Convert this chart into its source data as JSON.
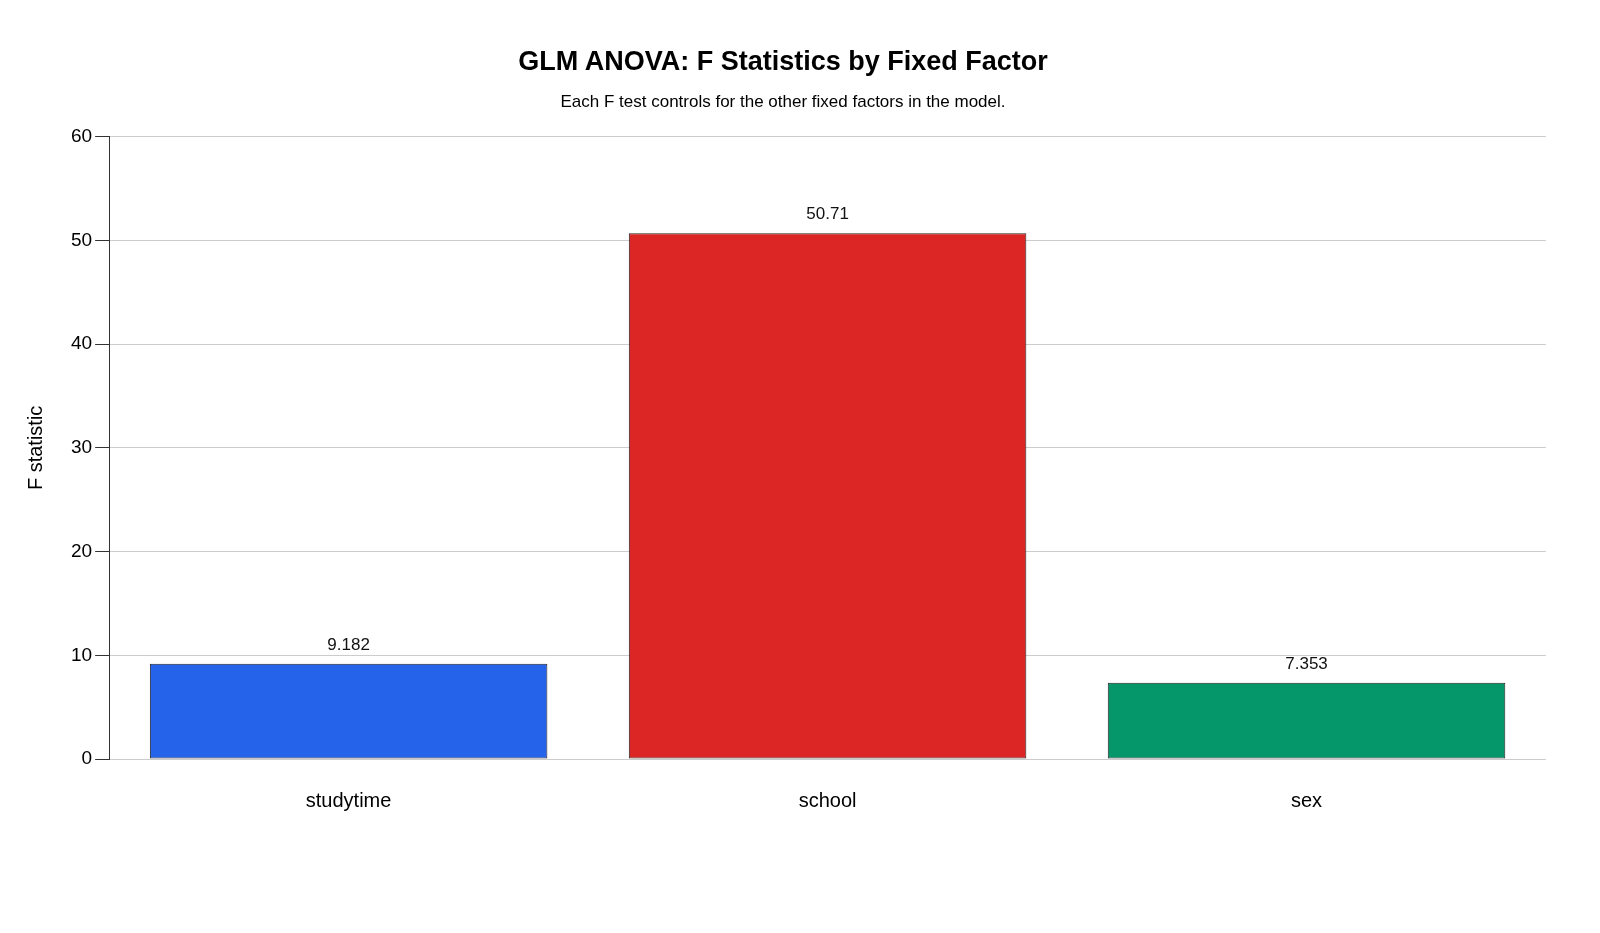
{
  "chart_data": {
    "type": "bar",
    "title": "GLM ANOVA: F Statistics by Fixed Factor",
    "subtitle": "Each F test controls for the other fixed factors in the model.",
    "ylabel": "F statistic",
    "categories": [
      "studytime",
      "school",
      "sex"
    ],
    "values": [
      9.182,
      50.71,
      7.353
    ],
    "colors": [
      "#2563eb",
      "#dc2626",
      "#059669"
    ],
    "ylim": [
      0,
      60
    ],
    "yticks": [
      0,
      10,
      20,
      30,
      40,
      50,
      60
    ],
    "grid": "y",
    "legend": false,
    "data_labels": true
  }
}
